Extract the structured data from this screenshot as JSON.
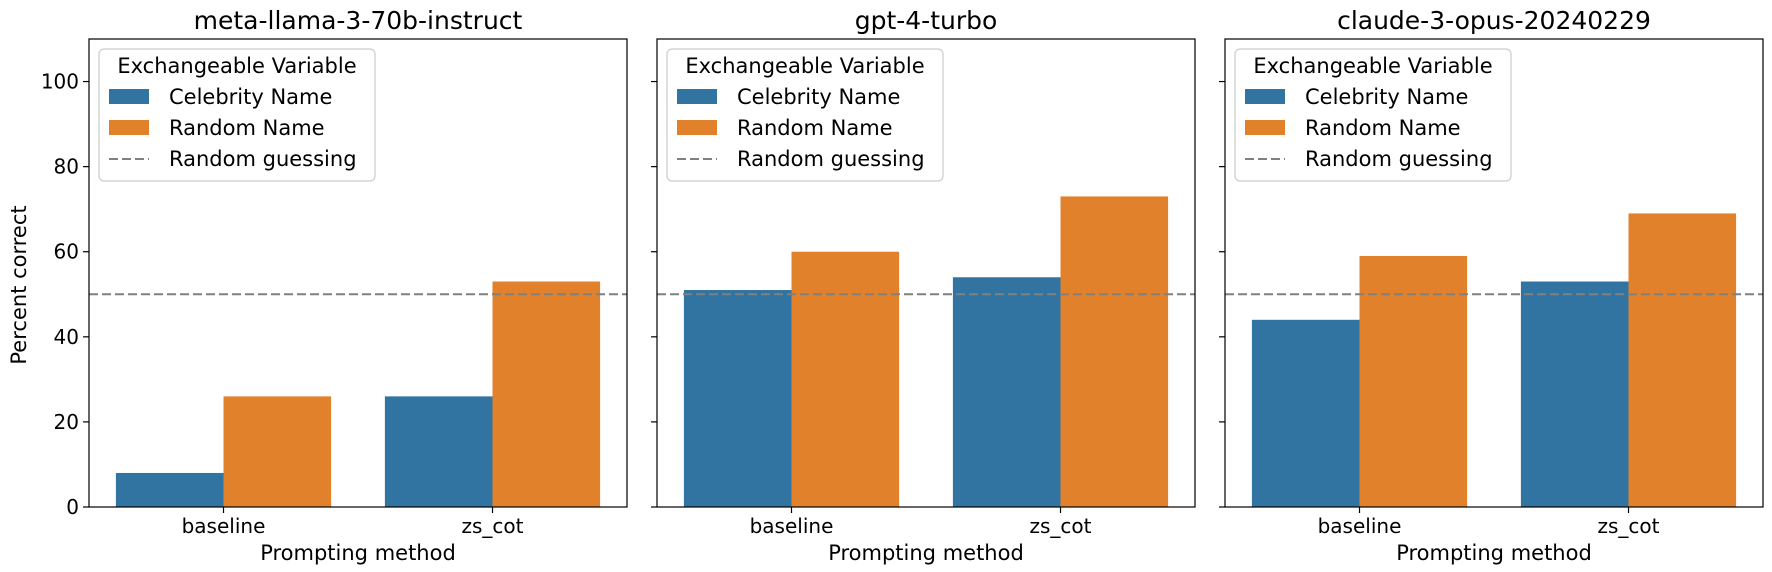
{
  "chart_data": {
    "type": "bar",
    "ylabel": "Percent correct",
    "xlabel": "Prompting method",
    "ylim": [
      0,
      110
    ],
    "yticks": [
      "0",
      "20",
      "40",
      "60",
      "80",
      "100"
    ],
    "categories": [
      "baseline",
      "zs_cot"
    ],
    "colors": {
      "Celebrity Name": "#3274a1",
      "Random Name": "#e1812c",
      "Random guessing": "#808080"
    },
    "reference_line": {
      "label": "Random guessing",
      "value": 50,
      "style": "dashed"
    },
    "legend": {
      "title": "Exchangeable Variable",
      "placement": "top-left",
      "entries": [
        "Celebrity Name",
        "Random Name",
        "Random guessing"
      ]
    },
    "panels": [
      {
        "title": "meta-llama-3-70b-instruct",
        "series": [
          {
            "name": "Celebrity Name",
            "values": [
              8,
              26
            ]
          },
          {
            "name": "Random Name",
            "values": [
              26,
              53
            ]
          }
        ]
      },
      {
        "title": "gpt-4-turbo",
        "series": [
          {
            "name": "Celebrity Name",
            "values": [
              51,
              54
            ]
          },
          {
            "name": "Random Name",
            "values": [
              60,
              73
            ]
          }
        ]
      },
      {
        "title": "claude-3-opus-20240229",
        "series": [
          {
            "name": "Celebrity Name",
            "values": [
              44,
              53
            ]
          },
          {
            "name": "Random Name",
            "values": [
              59,
              69
            ]
          }
        ]
      }
    ]
  }
}
